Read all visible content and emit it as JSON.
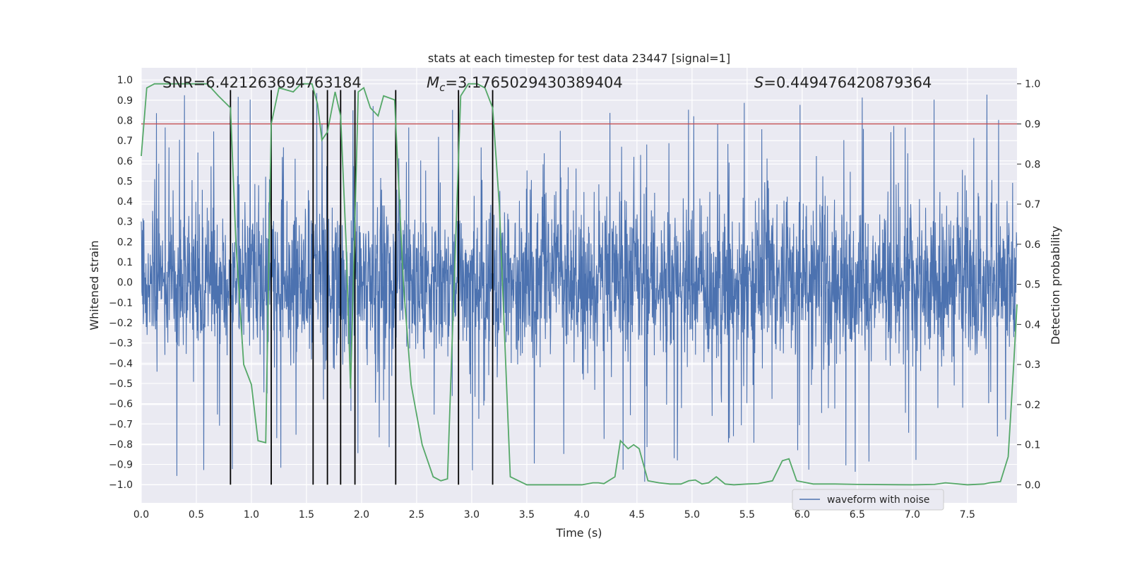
{
  "chart_data": {
    "type": "line",
    "title": "stats at each timestep for test data 23447 [signal=1]",
    "xlabel": "Time (s)",
    "ylabel": "Whitened strain",
    "y2label": "Detection probability",
    "xlim": [
      0.0,
      7.95
    ],
    "ylim": [
      -1.09,
      1.06
    ],
    "y2lim": [
      -0.045,
      1.04
    ],
    "xticks": [
      "0.0",
      "0.5",
      "1.0",
      "1.5",
      "2.0",
      "2.5",
      "3.0",
      "3.5",
      "4.0",
      "4.5",
      "5.0",
      "5.5",
      "6.0",
      "6.5",
      "7.0",
      "7.5"
    ],
    "yticks": [
      "1.0",
      "0.9",
      "0.8",
      "0.7",
      "0.6",
      "0.5",
      "0.4",
      "0.3",
      "0.2",
      "0.1",
      "0.0",
      "−0.1",
      "−0.2",
      "−0.3",
      "−0.4",
      "−0.5",
      "−0.6",
      "−0.7",
      "−0.8",
      "−0.9",
      "−1.0"
    ],
    "y2ticks": [
      "0.0",
      "0.1",
      "0.2",
      "0.3",
      "0.4",
      "0.5",
      "0.6",
      "0.7",
      "0.8",
      "0.9",
      "1.0"
    ],
    "annotations": {
      "snr": "SNR=6.421263694763184",
      "mc_symbol": "M",
      "mc_sub": "c",
      "mc_value": "=3.1765029430389404",
      "s_symbol": "S",
      "s_value": "=0.449476420879364"
    },
    "legend": {
      "label": "waveform with noise",
      "location": "lower center"
    },
    "threshold": {
      "y2": 0.9,
      "color": "#c44e52"
    },
    "vertical_lines_x": [
      0.81,
      1.18,
      1.56,
      1.69,
      1.81,
      1.94,
      2.31,
      2.88,
      3.19
    ],
    "vertical_line_range": [
      -1.0,
      0.95
    ],
    "series": [
      {
        "name": "waveform with noise",
        "axis": "left",
        "color": "#4c72b0",
        "noise": {
          "samples": 3000,
          "band_sigma": 0.2,
          "peak_max": 0.94,
          "trough_min": -0.99,
          "seed": 23447
        }
      },
      {
        "name": "detection probability",
        "axis": "right",
        "color": "#55a868",
        "x": [
          0.0,
          0.05,
          0.12,
          0.2,
          0.4,
          0.6,
          0.7,
          0.81,
          0.86,
          0.93,
          1.0,
          1.06,
          1.13,
          1.18,
          1.25,
          1.38,
          1.45,
          1.55,
          1.6,
          1.64,
          1.69,
          1.76,
          1.81,
          1.86,
          1.9,
          1.97,
          2.02,
          2.08,
          2.15,
          2.2,
          2.3,
          2.38,
          2.45,
          2.55,
          2.65,
          2.72,
          2.78,
          2.84,
          2.9,
          2.97,
          3.05,
          3.12,
          3.19,
          3.25,
          3.35,
          3.5,
          4.0,
          4.1,
          4.15,
          4.2,
          4.3,
          4.35,
          4.42,
          4.47,
          4.52,
          4.6,
          4.7,
          4.8,
          4.9,
          4.97,
          5.03,
          5.09,
          5.15,
          5.22,
          5.3,
          5.38,
          5.5,
          5.6,
          5.73,
          5.82,
          5.88,
          5.95,
          6.1,
          6.3,
          6.5,
          7.0,
          7.2,
          7.3,
          7.5,
          7.65,
          7.7,
          7.8,
          7.87,
          7.92,
          7.95
        ],
        "y": [
          0.82,
          0.99,
          1.0,
          1.0,
          1.0,
          1.0,
          0.97,
          0.94,
          0.6,
          0.3,
          0.25,
          0.11,
          0.105,
          0.9,
          0.99,
          0.98,
          1.0,
          1.0,
          0.95,
          0.86,
          0.88,
          0.98,
          0.92,
          0.6,
          0.24,
          0.98,
          0.99,
          0.94,
          0.92,
          0.97,
          0.96,
          0.5,
          0.25,
          0.1,
          0.02,
          0.01,
          0.015,
          0.5,
          0.97,
          1.0,
          1.0,
          0.99,
          0.94,
          0.7,
          0.02,
          0.0,
          0.0,
          0.005,
          0.005,
          0.003,
          0.02,
          0.11,
          0.09,
          0.1,
          0.09,
          0.01,
          0.005,
          0.002,
          0.002,
          0.01,
          0.012,
          0.002,
          0.005,
          0.02,
          0.002,
          0.0,
          0.002,
          0.003,
          0.01,
          0.06,
          0.065,
          0.01,
          0.002,
          0.002,
          0.001,
          0.0,
          0.001,
          0.005,
          0.0,
          0.002,
          0.005,
          0.008,
          0.07,
          0.3,
          0.45
        ]
      }
    ]
  }
}
